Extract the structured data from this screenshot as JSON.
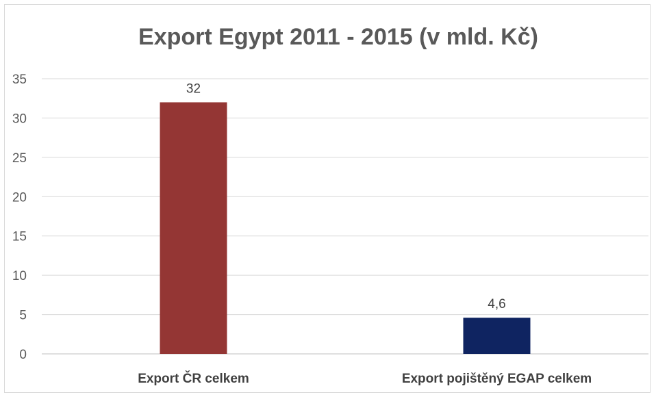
{
  "chart_data": {
    "type": "bar",
    "title": "Export Egypt 2011 - 2015 (v mld. Kč)",
    "categories": [
      "Export ČR celkem",
      "Export pojištěný EGAP celkem"
    ],
    "values": [
      32,
      4.6
    ],
    "data_labels": [
      "32",
      "4,6"
    ],
    "colors": [
      "#943634",
      "#0f2461"
    ],
    "ylim": [
      0,
      35
    ],
    "yticks": [
      0,
      5,
      10,
      15,
      20,
      25,
      30,
      35
    ],
    "xlabel": "",
    "ylabel": "",
    "grid": true,
    "legend": "none"
  }
}
